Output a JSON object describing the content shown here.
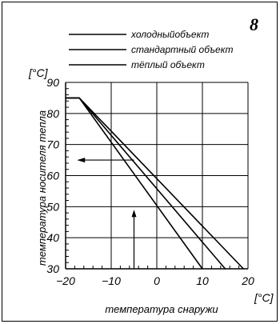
{
  "badge": "8",
  "chart_data": {
    "type": "line",
    "ylabel": "температура носителя тепла",
    "xlabel": "температура снаружи",
    "yunit": "[°C]",
    "xunit": "[°C]",
    "xlim": [
      -20,
      20
    ],
    "ylim": [
      30,
      90
    ],
    "grid": true,
    "legend_position": "top",
    "x_ticks": [
      -20,
      -10,
      0,
      10,
      20
    ],
    "x_tick_labels": [
      "−20",
      "−10",
      "0",
      "10",
      "20"
    ],
    "y_ticks": [
      30,
      40,
      50,
      60,
      70,
      80,
      90
    ],
    "y_tick_labels": [
      "30",
      "40",
      "50",
      "60",
      "70",
      "80",
      "90"
    ],
    "series": [
      {
        "name": "холодныйобъект",
        "x": [
          -20,
          -17,
          10
        ],
        "y": [
          85,
          85,
          30
        ]
      },
      {
        "name": "стандартный объект",
        "x": [
          -20,
          -17,
          15
        ],
        "y": [
          85,
          85,
          30
        ]
      },
      {
        "name": "тёплый объект",
        "x": [
          -20,
          -17,
          19
        ],
        "y": [
          85,
          85,
          30
        ]
      }
    ],
    "annotations": [
      {
        "type": "arrow-up",
        "x": -5,
        "y_from": 30,
        "y_to": 49
      },
      {
        "type": "arrow-left",
        "y": 65,
        "x_from": -5,
        "x_to": -17.5
      }
    ]
  }
}
